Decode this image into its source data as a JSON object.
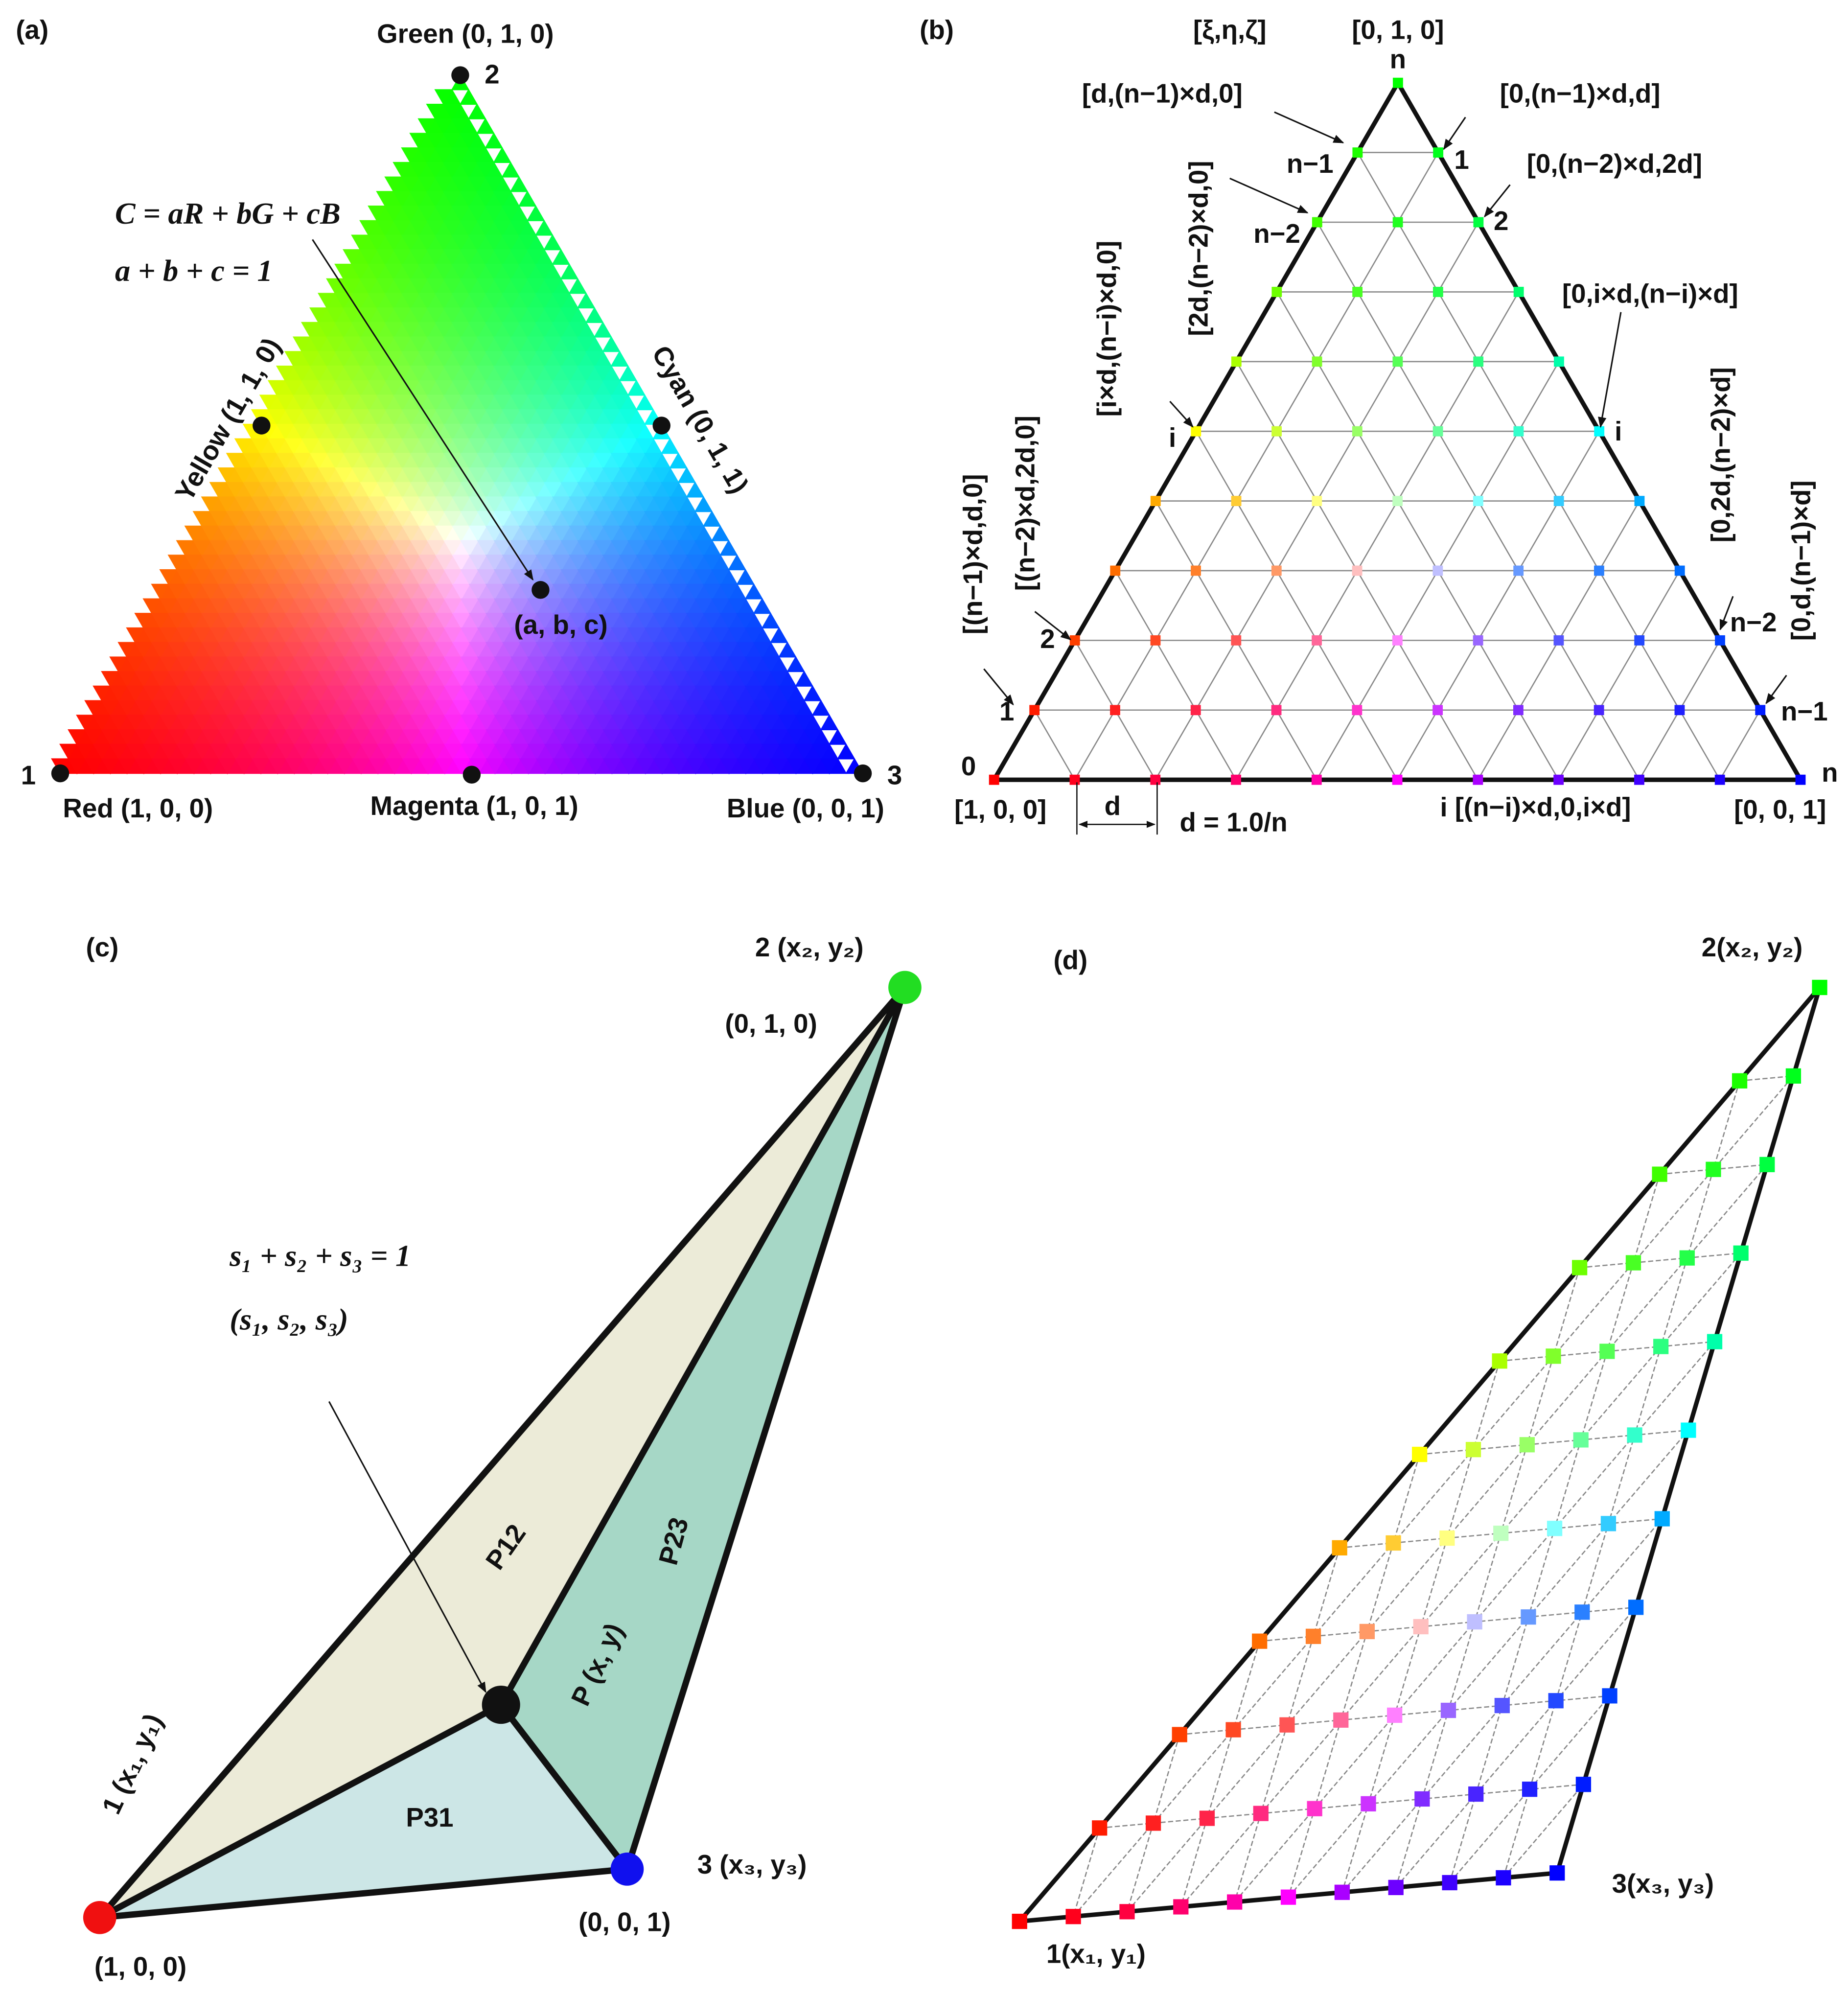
{
  "panel_a": {
    "label": "(a)",
    "green": "Green (0, 1, 0)",
    "red": "Red (1, 0, 0)",
    "blue": "Blue (0, 0, 1)",
    "yellow": "Yellow (1, 1, 0)",
    "cyan": "Cyan (0, 1, 1)",
    "magenta": "Magenta (1, 0, 1)",
    "index_1": "1",
    "index_2": "2",
    "index_3": "3",
    "equation_1": "C = aR + bG + cB",
    "equation_2": "a + b + c = 1",
    "point": "(a, b, c)"
  },
  "panel_b": {
    "label": "(b)",
    "texts": [
      "[ξ,η,ζ]",
      "[0, 1, 0]",
      "n",
      "[d,(n−1)×d,0]",
      "[0,(n−1)×d,d]",
      "n−1",
      "1",
      "[2d,(n−2)×d,0]",
      "[0,(n−2)×d,2d]",
      "n−2",
      "2",
      "[i×d,(n−i)×d,0]",
      "[0,i×d,(n−i)×d]",
      "i",
      "i",
      "[(n−2)×d,2d,0]",
      "[(n−1)×d,d,0]",
      "[0,2d,(n−2)×d]",
      "[0,d,(n−1)×d]",
      "2",
      "n−2",
      "1",
      "n−1",
      "0",
      "n",
      "[1, 0, 0]",
      "d",
      "d = 1.0/n",
      "i [(n−i)×d,0,i×d]",
      "[0, 0, 1]"
    ]
  },
  "panel_c": {
    "label": "(c)",
    "vertex_2": "2 (x₂, y₂)",
    "vertex_2_color": "(0, 1, 0)",
    "equation": "s₁ + s₂ + s₃ = 1",
    "coords": "(s₁, s₂, s₃)",
    "p12": "P12",
    "p23": "P23",
    "p31": "P31",
    "point": "P (x, y)",
    "vertex_1": "1 (x₁, y₁)",
    "vertex_1_color": "(1, 0, 0)",
    "vertex_3": "3 (x₃, y₃)",
    "vertex_3_color": "(0, 0, 1)"
  },
  "panel_d": {
    "label": "(d)",
    "vertex_2": "2(x₂, y₂)",
    "vertex_3": "3(x₃, y₃)",
    "vertex_1": "1(x₁, y₁)"
  }
}
